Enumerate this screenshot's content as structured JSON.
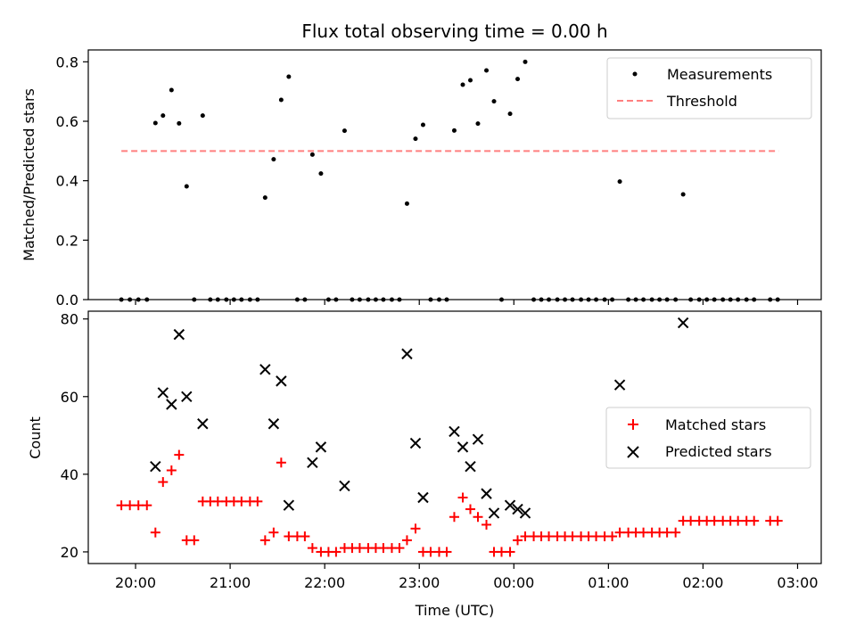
{
  "figure": {
    "title": "Flux total observing time = 0.00 h"
  },
  "chart_data": [
    {
      "type": "scatter",
      "ylabel": "Matched/Predicted stars",
      "xlabel": "",
      "xlim": [
        19.5,
        27.25
      ],
      "ylim": [
        0,
        0.84
      ],
      "xticks": [
        20,
        21,
        22,
        23,
        24,
        25,
        26,
        27
      ],
      "yticks": [
        0.0,
        0.2,
        0.4,
        0.6,
        0.8
      ],
      "ytick_labels": [
        "0.0",
        "0.2",
        "0.4",
        "0.6",
        "0.8"
      ],
      "legend": {
        "placement": "top-right",
        "entries": [
          "Measurements",
          "Threshold"
        ]
      },
      "threshold": {
        "name": "Threshold",
        "value": 0.5,
        "x": [
          19.85,
          26.8
        ],
        "color": "#ff7f7f"
      },
      "series": [
        {
          "name": "Measurements",
          "marker": "dot",
          "color": "#000000",
          "points": [
            [
              19.85,
              0
            ],
            [
              19.94,
              0
            ],
            [
              20.03,
              0
            ],
            [
              20.12,
              0
            ],
            [
              20.21,
              0.594
            ],
            [
              20.29,
              0.619
            ],
            [
              20.38,
              0.705
            ],
            [
              20.46,
              0.593
            ],
            [
              20.54,
              0.381
            ],
            [
              20.62,
              0
            ],
            [
              20.71,
              0.619
            ],
            [
              20.79,
              0
            ],
            [
              20.87,
              0
            ],
            [
              20.96,
              0
            ],
            [
              21.04,
              0
            ],
            [
              21.12,
              0
            ],
            [
              21.21,
              0
            ],
            [
              21.29,
              0
            ],
            [
              21.37,
              0.343
            ],
            [
              21.46,
              0.472
            ],
            [
              21.54,
              0.672
            ],
            [
              21.62,
              0.75
            ],
            [
              21.71,
              0
            ],
            [
              21.79,
              0
            ],
            [
              21.87,
              0.488
            ],
            [
              21.96,
              0.424
            ],
            [
              22.04,
              0
            ],
            [
              22.12,
              0
            ],
            [
              22.21,
              0.568
            ],
            [
              22.29,
              0
            ],
            [
              22.37,
              0
            ],
            [
              22.46,
              0
            ],
            [
              22.54,
              0
            ],
            [
              22.62,
              0
            ],
            [
              22.71,
              0
            ],
            [
              22.79,
              0
            ],
            [
              22.87,
              0.323
            ],
            [
              22.96,
              0.541
            ],
            [
              23.04,
              0.588
            ],
            [
              23.12,
              0
            ],
            [
              23.21,
              0
            ],
            [
              23.29,
              0
            ],
            [
              23.37,
              0.569
            ],
            [
              23.46,
              0.723
            ],
            [
              23.54,
              0.738
            ],
            [
              23.62,
              0.592
            ],
            [
              23.71,
              0.771
            ],
            [
              23.79,
              0.667
            ],
            [
              23.87,
              0
            ],
            [
              23.96,
              0.625
            ],
            [
              24.04,
              0.742
            ],
            [
              24.12,
              0.8
            ],
            [
              24.21,
              0
            ],
            [
              24.29,
              0
            ],
            [
              24.37,
              0
            ],
            [
              24.46,
              0
            ],
            [
              24.54,
              0
            ],
            [
              24.62,
              0
            ],
            [
              24.71,
              0
            ],
            [
              24.79,
              0
            ],
            [
              24.87,
              0
            ],
            [
              24.96,
              0
            ],
            [
              25.04,
              0
            ],
            [
              25.12,
              0.397
            ],
            [
              25.21,
              0
            ],
            [
              25.29,
              0
            ],
            [
              25.37,
              0
            ],
            [
              25.46,
              0
            ],
            [
              25.54,
              0
            ],
            [
              25.62,
              0
            ],
            [
              25.71,
              0
            ],
            [
              25.79,
              0.354
            ],
            [
              25.87,
              0
            ],
            [
              25.96,
              0
            ],
            [
              26.04,
              0
            ],
            [
              26.12,
              0
            ],
            [
              26.21,
              0
            ],
            [
              26.29,
              0
            ],
            [
              26.37,
              0
            ],
            [
              26.46,
              0
            ],
            [
              26.54,
              0
            ],
            [
              26.71,
              0
            ],
            [
              26.79,
              0
            ]
          ]
        }
      ]
    },
    {
      "type": "scatter",
      "xlabel": "Time (UTC)",
      "ylabel": "Count",
      "xlim": [
        19.5,
        27.25
      ],
      "ylim": [
        17,
        82
      ],
      "xticks": [
        20,
        21,
        22,
        23,
        24,
        25,
        26,
        27
      ],
      "xtick_labels": [
        "20:00",
        "21:00",
        "22:00",
        "23:00",
        "00:00",
        "01:00",
        "02:00",
        "03:00"
      ],
      "yticks": [
        20,
        40,
        60,
        80
      ],
      "ytick_labels": [
        "20",
        "40",
        "60",
        "80"
      ],
      "legend": {
        "placement": "center-right",
        "entries": [
          "Matched stars",
          "Predicted stars"
        ]
      },
      "series": [
        {
          "name": "Matched stars",
          "marker": "plus",
          "color": "#ff0000",
          "points": [
            [
              19.85,
              32
            ],
            [
              19.94,
              32
            ],
            [
              20.03,
              32
            ],
            [
              20.12,
              32
            ],
            [
              20.21,
              25
            ],
            [
              20.29,
              38
            ],
            [
              20.38,
              41
            ],
            [
              20.46,
              45
            ],
            [
              20.54,
              23
            ],
            [
              20.62,
              23
            ],
            [
              20.71,
              33
            ],
            [
              20.79,
              33
            ],
            [
              20.87,
              33
            ],
            [
              20.96,
              33
            ],
            [
              21.04,
              33
            ],
            [
              21.12,
              33
            ],
            [
              21.21,
              33
            ],
            [
              21.29,
              33
            ],
            [
              21.37,
              23
            ],
            [
              21.46,
              25
            ],
            [
              21.54,
              43
            ],
            [
              21.62,
              24
            ],
            [
              21.71,
              24
            ],
            [
              21.79,
              24
            ],
            [
              21.87,
              21
            ],
            [
              21.96,
              20
            ],
            [
              22.04,
              20
            ],
            [
              22.12,
              20
            ],
            [
              22.21,
              21
            ],
            [
              22.29,
              21
            ],
            [
              22.37,
              21
            ],
            [
              22.46,
              21
            ],
            [
              22.54,
              21
            ],
            [
              22.62,
              21
            ],
            [
              22.71,
              21
            ],
            [
              22.79,
              21
            ],
            [
              22.87,
              23
            ],
            [
              22.96,
              26
            ],
            [
              23.04,
              20
            ],
            [
              23.12,
              20
            ],
            [
              23.21,
              20
            ],
            [
              23.29,
              20
            ],
            [
              23.37,
              29
            ],
            [
              23.46,
              34
            ],
            [
              23.54,
              31
            ],
            [
              23.62,
              29
            ],
            [
              23.71,
              27
            ],
            [
              23.79,
              20
            ],
            [
              23.87,
              20
            ],
            [
              23.96,
              20
            ],
            [
              24.04,
              23
            ],
            [
              24.12,
              24
            ],
            [
              24.21,
              24
            ],
            [
              24.29,
              24
            ],
            [
              24.37,
              24
            ],
            [
              24.46,
              24
            ],
            [
              24.54,
              24
            ],
            [
              24.62,
              24
            ],
            [
              24.71,
              24
            ],
            [
              24.79,
              24
            ],
            [
              24.87,
              24
            ],
            [
              24.96,
              24
            ],
            [
              25.04,
              24
            ],
            [
              25.12,
              25
            ],
            [
              25.21,
              25
            ],
            [
              25.29,
              25
            ],
            [
              25.37,
              25
            ],
            [
              25.46,
              25
            ],
            [
              25.54,
              25
            ],
            [
              25.62,
              25
            ],
            [
              25.71,
              25
            ],
            [
              25.79,
              28
            ],
            [
              25.87,
              28
            ],
            [
              25.96,
              28
            ],
            [
              26.04,
              28
            ],
            [
              26.12,
              28
            ],
            [
              26.21,
              28
            ],
            [
              26.29,
              28
            ],
            [
              26.37,
              28
            ],
            [
              26.46,
              28
            ],
            [
              26.54,
              28
            ],
            [
              26.71,
              28
            ],
            [
              26.79,
              28
            ]
          ]
        },
        {
          "name": "Predicted stars",
          "marker": "x",
          "color": "#000000",
          "points": [
            [
              20.21,
              42
            ],
            [
              20.29,
              61
            ],
            [
              20.38,
              58
            ],
            [
              20.46,
              76
            ],
            [
              20.54,
              60
            ],
            [
              20.71,
              53
            ],
            [
              21.37,
              67
            ],
            [
              21.46,
              53
            ],
            [
              21.54,
              64
            ],
            [
              21.62,
              32
            ],
            [
              21.87,
              43
            ],
            [
              21.96,
              47
            ],
            [
              22.21,
              37
            ],
            [
              22.87,
              71
            ],
            [
              22.96,
              48
            ],
            [
              23.04,
              34
            ],
            [
              23.37,
              51
            ],
            [
              23.46,
              47
            ],
            [
              23.54,
              42
            ],
            [
              23.62,
              49
            ],
            [
              23.71,
              35
            ],
            [
              23.79,
              30
            ],
            [
              23.96,
              32
            ],
            [
              24.04,
              31
            ],
            [
              24.12,
              30
            ],
            [
              25.12,
              63
            ],
            [
              25.79,
              79
            ]
          ]
        }
      ]
    }
  ]
}
